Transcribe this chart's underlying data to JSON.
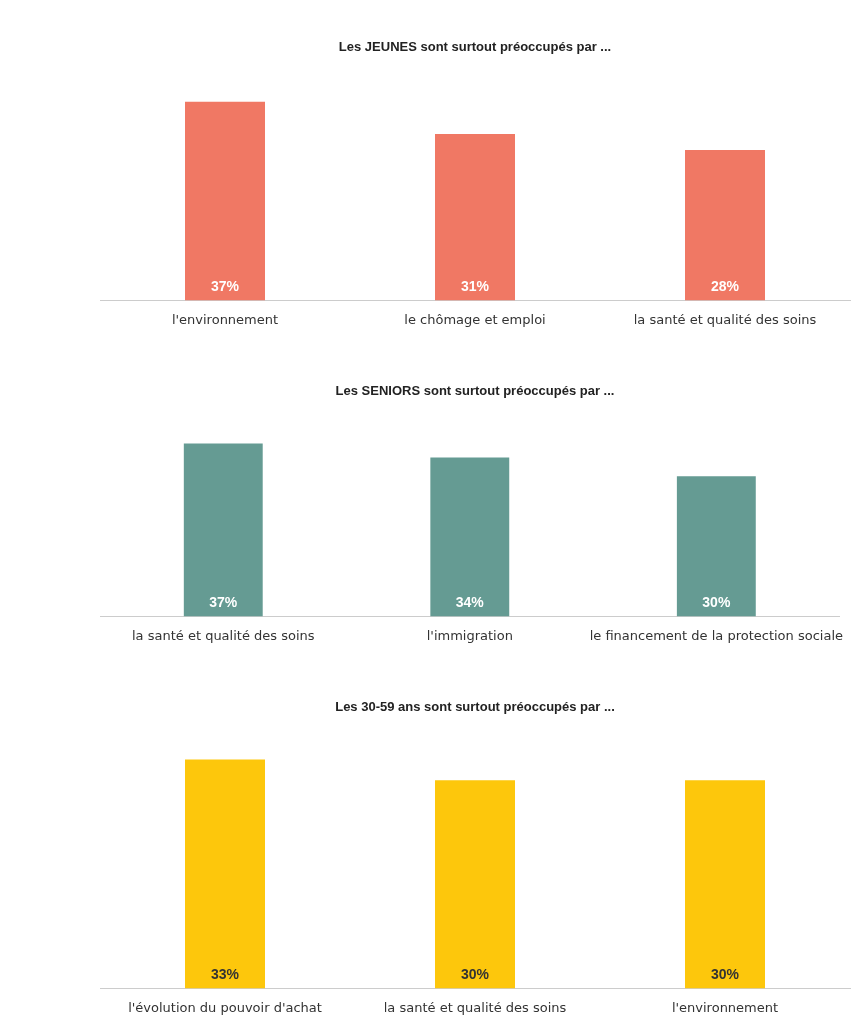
{
  "chart_data": [
    {
      "type": "bar",
      "title": "Les JEUNES sont surtout préoccupés par ...",
      "categories": [
        "l'environnement",
        "le chômage et emploi",
        "la santé et qualité des soins"
      ],
      "values": [
        37,
        31,
        28
      ],
      "value_labels": [
        "37%",
        "31%",
        "28%"
      ],
      "color": "#f07864",
      "grid": false,
      "legend": false,
      "tick_labels": "x"
    },
    {
      "type": "bar",
      "title": "Les SENIORS sont surtout préoccupés par ...",
      "categories": [
        "la santé et qualité des soins",
        "l'immigration",
        "le financement de la protection sociale"
      ],
      "values": [
        37,
        34,
        30
      ],
      "value_labels": [
        "37%",
        "34%",
        "30%"
      ],
      "color": "#659b93",
      "grid": false,
      "legend": false,
      "tick_labels": "x"
    },
    {
      "type": "bar",
      "title": "Les 30-59 ans sont surtout préoccupés par ...",
      "categories": [
        "l'évolution du pouvoir d'achat",
        "la santé et qualité des soins",
        "l'environnement"
      ],
      "values": [
        33,
        30,
        30
      ],
      "value_labels": [
        "33%",
        "30%",
        "30%"
      ],
      "color": "#fdc70c",
      "grid": false,
      "legend": false,
      "tick_labels": "x"
    }
  ]
}
